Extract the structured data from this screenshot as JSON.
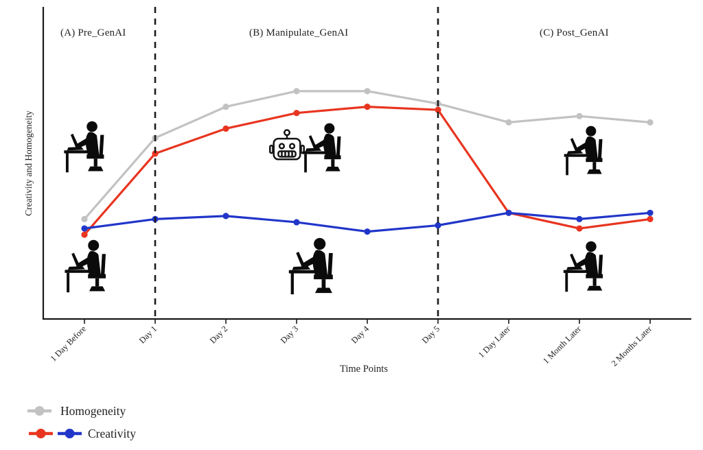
{
  "chart_data": {
    "type": "line",
    "x_categories": [
      "1 Day Before",
      "Day 1",
      "Day 2",
      "Day 3",
      "Day 4",
      "Day 5",
      "1 Day Later",
      "1 Month Later",
      "2 Months Later"
    ],
    "series": [
      {
        "name": "Homogeneity",
        "color": "#c2c2c2",
        "values": [
          32,
          58,
          68,
          73,
          73,
          69,
          63,
          65,
          63
        ]
      },
      {
        "name": "Creativity",
        "color": "#e8351f",
        "values": [
          27,
          53,
          61,
          66,
          68,
          67,
          34,
          29,
          32
        ]
      },
      {
        "name": "Creativity",
        "color": "#2136c9",
        "values": [
          29,
          32,
          33,
          31,
          28,
          30,
          34,
          32,
          34
        ]
      }
    ],
    "xlabel": "Time Points",
    "ylabel": "Creativity and Homogeneity",
    "ylim": [
      0,
      100
    ],
    "grid": false,
    "legend_position": "bottom-left",
    "separators_at_x": [
      "Day 1",
      "Day 5"
    ],
    "annotations": [
      "(A) Pre_GenAI",
      "(B) Manipulate_GenAI",
      "(C) Post_GenAI"
    ]
  },
  "legend": {
    "items": [
      {
        "label": "Homogeneity",
        "markers": [
          "#c2c2c2"
        ]
      },
      {
        "label": "Creativity",
        "markers": [
          "#e8351f",
          "#2136c9"
        ]
      }
    ]
  },
  "icons": {
    "person": "person-working-at-laptop-icon",
    "robot": "robot-icon"
  }
}
